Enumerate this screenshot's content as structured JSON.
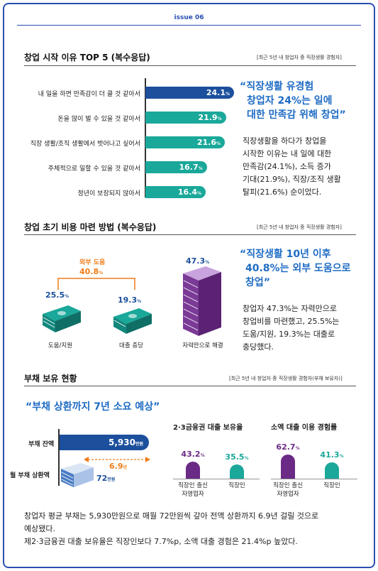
{
  "issue_label": "issue 06",
  "section1": {
    "title": "창업 시작 이유 TOP 5 (복수응답)",
    "note": "[최근 5년 내 창업자 중 직장생활 경험자]",
    "bars": [
      {
        "label": "내 일을 하면 만족감이 더 클 것 같아서",
        "value": 24.1,
        "text": "24.1"
      },
      {
        "label": "돈을 많이 벌 수 있을 것 같아서",
        "value": 21.9,
        "text": "21.9"
      },
      {
        "label": "직장 생활/조직 생활에서 벗어나고 싶어서",
        "value": 21.6,
        "text": "21.6"
      },
      {
        "label": "주체적으로 일할 수 있을 것 같아서",
        "value": 16.7,
        "text": "16.7"
      },
      {
        "label": "정년이 보장되지 않아서",
        "value": 16.4,
        "text": "16.4"
      }
    ],
    "pct_unit": "%",
    "quote": [
      "“직장생활 유경험",
      "창업자 24%는 일에",
      "대한 만족감 위해 창업”"
    ],
    "body": [
      "직장생활을 하다가 창업을",
      "시작한 이유는 내 일에 대한",
      "만족감(24.1%), 소득 증가",
      "기대(21.9%), 직장/조직 생활",
      "탈피(21.6%) 순이었다."
    ]
  },
  "section2": {
    "title": "창업 초기 비용 마련 방법 (복수응답)",
    "note": "[최근 5년 내 창업자 중 직장생활 경험자]",
    "outside_label": "외부 도움",
    "outside_value": "40.8",
    "items": [
      {
        "value": "25.5",
        "label": "도움/지원"
      },
      {
        "value": "19.3",
        "label": "대출 충당"
      },
      {
        "value": "47.3",
        "label": "자력만으로 해결"
      }
    ],
    "pct_unit": "%",
    "quote": [
      "“직장생활 10년 이후",
      "40.8%는 외부 도움으로",
      "창업”"
    ],
    "body": [
      "창업자 47.3%는 자력만으로",
      "창업비를 마련했고, 25.5%는",
      "도움/지원, 19.3%는 대출로",
      "충당했다."
    ]
  },
  "section3": {
    "title": "부채 보유 현황",
    "note": "[최근 5년 내 창업자 중 직장생활 경험자(부채 보유자)]",
    "quote": "“부채 상환까지 7년 소요 예상”",
    "debt_label": "부채 잔액",
    "debt_value": "5,930",
    "debt_unit": "만원",
    "monthly_label": "월 부채 상환액",
    "monthly_value": "72",
    "monthly_unit": "만원",
    "years_value": "6.9",
    "years_unit": "년",
    "chart1_title": "2·3금융권 대출 보유율",
    "chart1": [
      {
        "value": 43.2,
        "text": "43.2",
        "label": [
          "직장인 출신",
          "자영업자"
        ]
      },
      {
        "value": 35.5,
        "text": "35.5",
        "label": [
          "직장인"
        ]
      }
    ],
    "chart2_title": "소액 대출 이용 경험률",
    "chart2": [
      {
        "value": 62.7,
        "text": "62.7",
        "label": [
          "직장인 출신",
          "자영업자"
        ]
      },
      {
        "value": 41.3,
        "text": "41.3",
        "label": [
          "직장인"
        ]
      }
    ],
    "pct_unit": "%",
    "body": [
      "창업자 평균 부채는 5,930만원으로 매월 72만원씩 갚아 전액 상환까지 6.9년 걸릴 것으로",
      "예상됐다.",
      "제2·3금융권 대출 보유율은 직장인보다 7.7%p, 소액 대출 경험은 21.4%p 높았다."
    ]
  },
  "colors": {
    "navy": "#1c4f9c",
    "teal": "#1aa89a",
    "purple": "#6a2a86",
    "orange": "#ef7d1a",
    "blue_text": "#1f6cc4"
  }
}
